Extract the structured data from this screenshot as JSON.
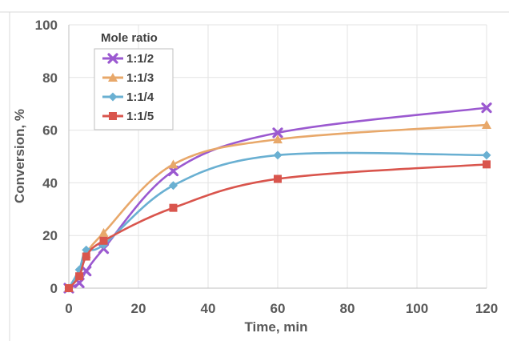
{
  "chart_data": {
    "type": "line",
    "xlabel": "Time, min",
    "ylabel": "Conversion, %",
    "xlim": [
      0,
      120
    ],
    "ylim": [
      0,
      100
    ],
    "x_ticks": [
      0,
      20,
      40,
      60,
      80,
      100,
      120
    ],
    "y_ticks": [
      0,
      20,
      40,
      60,
      80,
      100
    ],
    "grid": true,
    "legend": {
      "title": "Mole ratio",
      "placement": "top-left"
    },
    "series": [
      {
        "name": "1:1/2",
        "color": "#9b59d0",
        "marker": "x",
        "x": [
          0,
          3,
          5,
          10,
          30,
          60,
          120
        ],
        "y": [
          0,
          2,
          6.5,
          15,
          44.5,
          59,
          68.5
        ]
      },
      {
        "name": "1:1/3",
        "color": "#e8a86a",
        "marker": "triangle",
        "x": [
          0,
          3,
          5,
          10,
          30,
          60,
          120
        ],
        "y": [
          0,
          6,
          13,
          21,
          47,
          56.5,
          62
        ]
      },
      {
        "name": "1:1/4",
        "color": "#6ab0d2",
        "marker": "diamond",
        "x": [
          0,
          3,
          5,
          10,
          30,
          60,
          120
        ],
        "y": [
          0,
          7,
          14.5,
          16.5,
          39,
          50.5,
          50.5
        ]
      },
      {
        "name": "1:1/5",
        "color": "#d9554d",
        "marker": "square",
        "x": [
          0,
          3,
          5,
          10,
          30,
          60,
          120
        ],
        "y": [
          0,
          4.5,
          12,
          18,
          30.5,
          41.5,
          47
        ]
      }
    ]
  },
  "icons": {
    "x": "x-marker-icon",
    "triangle": "triangle-marker-icon",
    "diamond": "diamond-marker-icon",
    "square": "square-marker-icon"
  }
}
